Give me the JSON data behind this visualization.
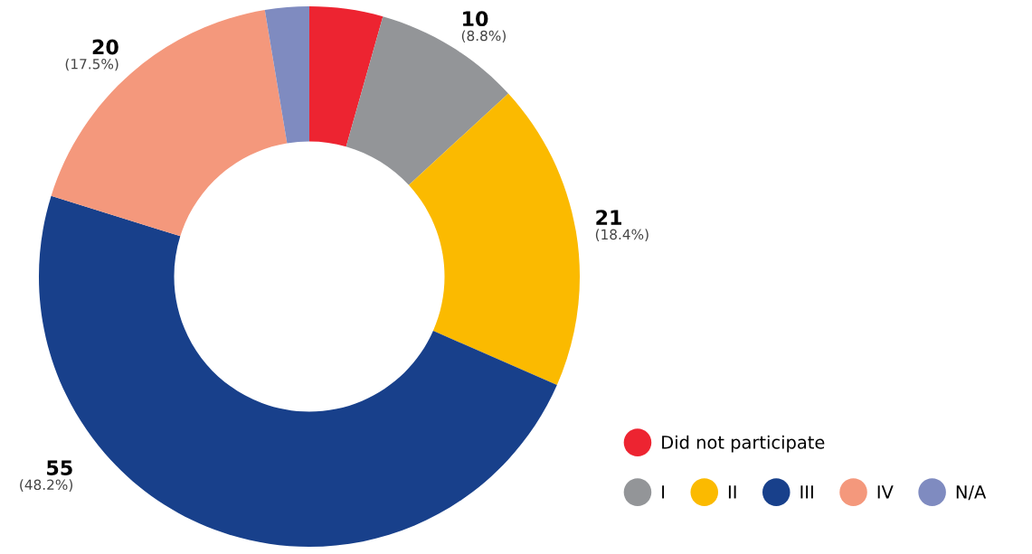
{
  "chart_data": {
    "type": "donut",
    "categories": [
      "Did not participate",
      "I",
      "II",
      "III",
      "IV",
      "N/A"
    ],
    "values": [
      5,
      10,
      21,
      55,
      20,
      3
    ],
    "colors": [
      "#ed2431",
      "#939598",
      "#fbba00",
      "#18408b",
      "#f4987c",
      "#7f8bc0"
    ],
    "value_labels": [
      null,
      "10\n(8.8%)",
      "21\n(18.4%)",
      "55\n(48.2%)",
      "20\n(17.5%)",
      null
    ],
    "legend": "bottom right"
  }
}
